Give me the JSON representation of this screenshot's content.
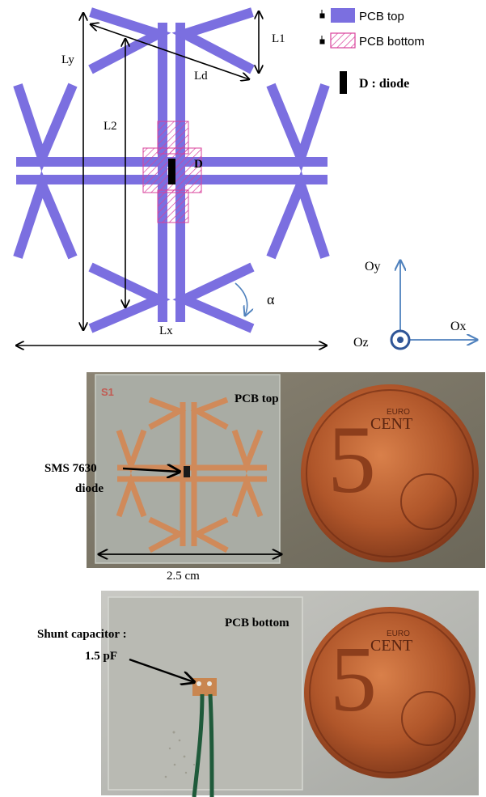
{
  "legend": {
    "top_label": "PCB top",
    "bottom_label": "PCB bottom",
    "diode_label": "D : diode",
    "top_color": "#7b6fe0",
    "bottom_color": "#d9409b"
  },
  "schematic": {
    "dims": {
      "ly": "Ly",
      "l1": "L1",
      "ld": "Ld",
      "l2": "L2",
      "lx": "Lx",
      "alpha": "α",
      "d": "D"
    },
    "axes": {
      "oy": "Oy",
      "ox": "Ox",
      "oz": "Oz",
      "axis_color": "#4f81bd"
    },
    "trace_color": "#7b6fe0"
  },
  "photo_top": {
    "pcb_label": "PCB top",
    "board_id": "S1",
    "diode_label_line1": "SMS 7630",
    "diode_label_line2": "diode",
    "scale_label": "2.5 cm",
    "coin_text": "EURO",
    "coin_cent": "CENT",
    "coin_value": "5"
  },
  "photo_bottom": {
    "pcb_label": "PCB bottom",
    "cap_label_line1": "Shunt capacitor :",
    "cap_label_line2": "1.5 pF",
    "coin_text": "EURO",
    "coin_cent": "CENT",
    "coin_value": "5"
  }
}
